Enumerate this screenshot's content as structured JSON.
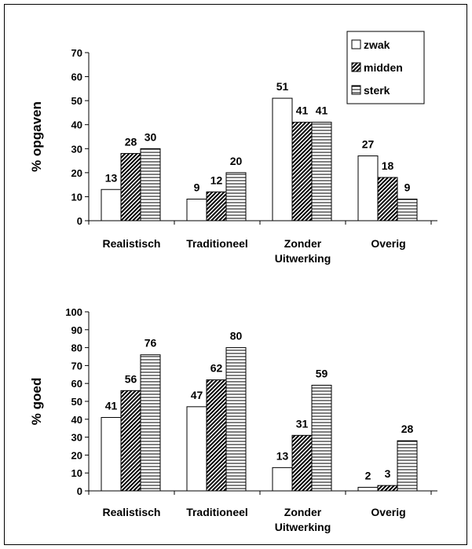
{
  "chart_data": [
    {
      "type": "bar",
      "title": "",
      "xlabel": "",
      "ylabel": "% opgaven",
      "ylim": [
        0,
        70
      ],
      "yticks": [
        0,
        10,
        20,
        30,
        40,
        50,
        60,
        70
      ],
      "categories": [
        [
          "Realistisch"
        ],
        [
          "Traditioneel"
        ],
        [
          "Zonder",
          "Uitwerking"
        ],
        [
          "Overig"
        ]
      ],
      "series": [
        {
          "name": "zwak",
          "values": [
            13,
            9,
            51,
            27
          ]
        },
        {
          "name": "midden",
          "values": [
            28,
            12,
            41,
            18
          ]
        },
        {
          "name": "sterk",
          "values": [
            30,
            20,
            41,
            9
          ]
        }
      ],
      "legend": "top-right",
      "grid": false
    },
    {
      "type": "bar",
      "title": "",
      "xlabel": "",
      "ylabel": "% goed",
      "ylim": [
        0,
        100
      ],
      "yticks": [
        0,
        10,
        20,
        30,
        40,
        50,
        60,
        70,
        80,
        90,
        100
      ],
      "categories": [
        [
          "Realistisch"
        ],
        [
          "Traditioneel"
        ],
        [
          "Zonder",
          "Uitwerking"
        ],
        [
          "Overig"
        ]
      ],
      "series": [
        {
          "name": "zwak",
          "values": [
            41,
            47,
            13,
            2
          ]
        },
        {
          "name": "midden",
          "values": [
            56,
            62,
            31,
            3
          ]
        },
        {
          "name": "sterk",
          "values": [
            76,
            80,
            59,
            28
          ]
        }
      ],
      "legend": "none",
      "grid": false
    }
  ],
  "legend_items": [
    {
      "label": "zwak",
      "pattern": "none"
    },
    {
      "label": "midden",
      "pattern": "diag"
    },
    {
      "label": "sterk",
      "pattern": "horiz"
    }
  ]
}
